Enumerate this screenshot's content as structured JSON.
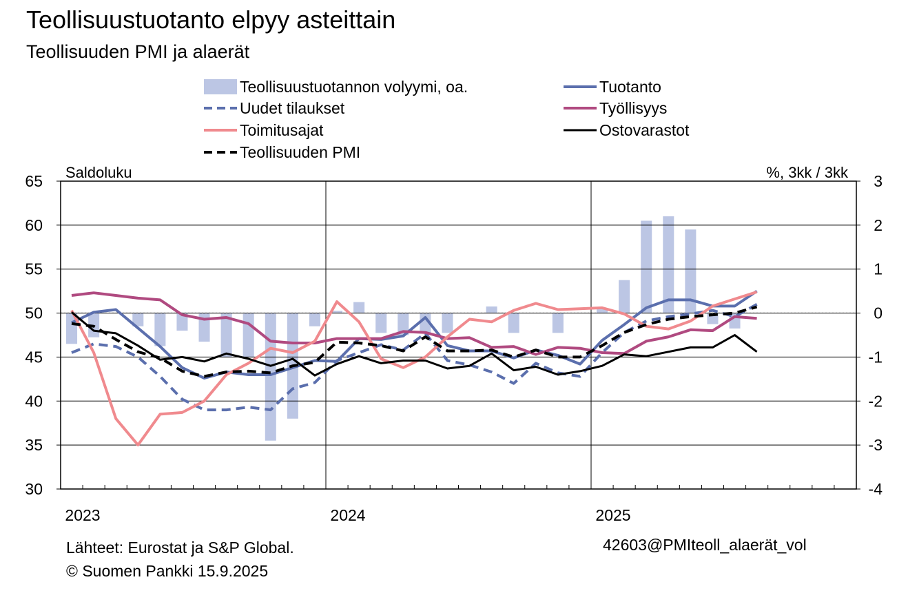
{
  "header": {
    "title": "Teollisuustuotanto elpyy asteittain",
    "subtitle": "Teollisuuden PMI ja alaerät"
  },
  "footer": {
    "sources": "Lähteet: Eurostat ja S&P Global.",
    "copyright": "© Suomen Pankki 15.9.2025",
    "code": "42603@PMIteoll_alaerät_vol"
  },
  "chart_data": {
    "type": "line",
    "x": [
      "2023-01",
      "2023-02",
      "2023-03",
      "2023-04",
      "2023-05",
      "2023-06",
      "2023-07",
      "2023-08",
      "2023-09",
      "2023-10",
      "2023-11",
      "2023-12",
      "2024-01",
      "2024-02",
      "2024-03",
      "2024-04",
      "2024-05",
      "2024-06",
      "2024-07",
      "2024-08",
      "2024-09",
      "2024-10",
      "2024-11",
      "2024-12",
      "2025-01",
      "2025-02",
      "2025-03",
      "2025-04",
      "2025-05",
      "2025-06",
      "2025-07",
      "2025-08"
    ],
    "x_tick_labels": [
      "2023",
      "2024",
      "2025"
    ],
    "ylabel_left": "Saldoluku",
    "ylabel_right": "%, 3kk / 3kk",
    "ylim_left": [
      30,
      65
    ],
    "yticks_left": [
      30,
      35,
      40,
      45,
      50,
      55,
      60,
      65
    ],
    "ylim_right": [
      -4,
      3
    ],
    "yticks_right": [
      -4,
      -3,
      -2,
      -1,
      0,
      1,
      2,
      3
    ],
    "grid": true,
    "reference_line_left": 50,
    "legend_position": "top",
    "bar_series": {
      "name": "Teollisuustuotannon volyymi, oa.",
      "axis": "right",
      "color": "#bcc6e4",
      "values": [
        -0.7,
        -0.55,
        null,
        -0.3,
        -0.75,
        -0.4,
        -0.65,
        -1.0,
        -1.0,
        -2.9,
        -2.4,
        -0.3,
        0.05,
        0.25,
        -0.45,
        -0.5,
        -0.45,
        -0.45,
        0.0,
        0.15,
        -0.45,
        null,
        -0.45,
        null,
        0.1,
        0.75,
        2.1,
        2.2,
        1.9,
        -0.25,
        -0.35,
        null
      ]
    },
    "series": [
      {
        "name": "Tuotanto",
        "axis": "left",
        "color": "#5b6fad",
        "dash": "solid",
        "values": [
          48.9,
          50.1,
          50.4,
          48.3,
          46.2,
          43.8,
          42.6,
          43.3,
          43.0,
          43.0,
          43.8,
          44.6,
          44.5,
          47.1,
          47.0,
          47.4,
          49.5,
          46.3,
          45.7,
          45.7,
          44.9,
          45.8,
          45.2,
          44.2,
          46.9,
          48.7,
          50.6,
          51.5,
          51.5,
          50.8,
          50.8,
          52.5
        ]
      },
      {
        "name": "Uudet tilaukset",
        "axis": "left",
        "color": "#5b6fad",
        "dash": "dashed",
        "values": [
          45.5,
          46.5,
          46.2,
          45.0,
          42.8,
          40.2,
          39.0,
          39.0,
          39.3,
          39.0,
          41.4,
          42.1,
          44.6,
          45.5,
          46.4,
          45.8,
          47.7,
          44.6,
          44.1,
          43.3,
          42.0,
          44.3,
          43.2,
          42.8,
          45.5,
          47.8,
          49.1,
          49.6,
          49.9,
          50.3,
          49.6,
          51.0
        ]
      },
      {
        "name": "Työllisyys",
        "axis": "left",
        "color": "#b04a80",
        "dash": "solid",
        "values": [
          52.0,
          52.3,
          52.0,
          51.7,
          51.5,
          49.8,
          49.3,
          49.5,
          48.8,
          46.8,
          46.6,
          46.6,
          47.1,
          47.1,
          47.1,
          47.9,
          47.8,
          47.1,
          47.2,
          46.1,
          46.2,
          45.3,
          46.1,
          46.0,
          45.5,
          45.4,
          46.8,
          47.3,
          48.1,
          48.0,
          49.6,
          49.4
        ]
      },
      {
        "name": "Toimitusajat",
        "axis": "left",
        "color": "#f08a8e",
        "dash": "solid",
        "values": [
          50.3,
          45.5,
          38.0,
          35.0,
          38.5,
          38.7,
          40.0,
          43.0,
          44.3,
          46.0,
          45.5,
          46.8,
          51.3,
          49.0,
          44.8,
          43.8,
          45.0,
          47.3,
          49.3,
          49.0,
          50.3,
          51.1,
          50.4,
          50.5,
          50.6,
          49.9,
          48.5,
          48.2,
          49.1,
          50.8,
          51.6,
          52.4
        ]
      },
      {
        "name": "Ostovarastot",
        "axis": "left",
        "color": "#000000",
        "dash": "solid",
        "values": [
          50.1,
          48.0,
          47.7,
          46.3,
          44.7,
          45.0,
          44.5,
          45.4,
          44.8,
          44.0,
          44.8,
          42.9,
          44.2,
          45.1,
          44.3,
          44.6,
          44.6,
          43.7,
          44.0,
          45.4,
          43.5,
          43.9,
          43.0,
          43.4,
          44.0,
          45.3,
          45.1,
          45.6,
          46.1,
          46.1,
          47.5,
          45.6
        ]
      },
      {
        "name": "Teollisuuden PMI",
        "axis": "left",
        "color": "#000000",
        "dash": "dashed",
        "values": [
          48.8,
          48.5,
          47.0,
          45.6,
          44.9,
          43.4,
          42.8,
          43.3,
          43.4,
          43.2,
          44.0,
          44.4,
          46.7,
          46.6,
          46.3,
          45.7,
          47.3,
          45.7,
          45.7,
          45.8,
          45.0,
          45.8,
          45.0,
          45.0,
          46.3,
          47.8,
          48.7,
          49.3,
          49.6,
          49.8,
          50.0,
          50.7
        ]
      }
    ]
  }
}
